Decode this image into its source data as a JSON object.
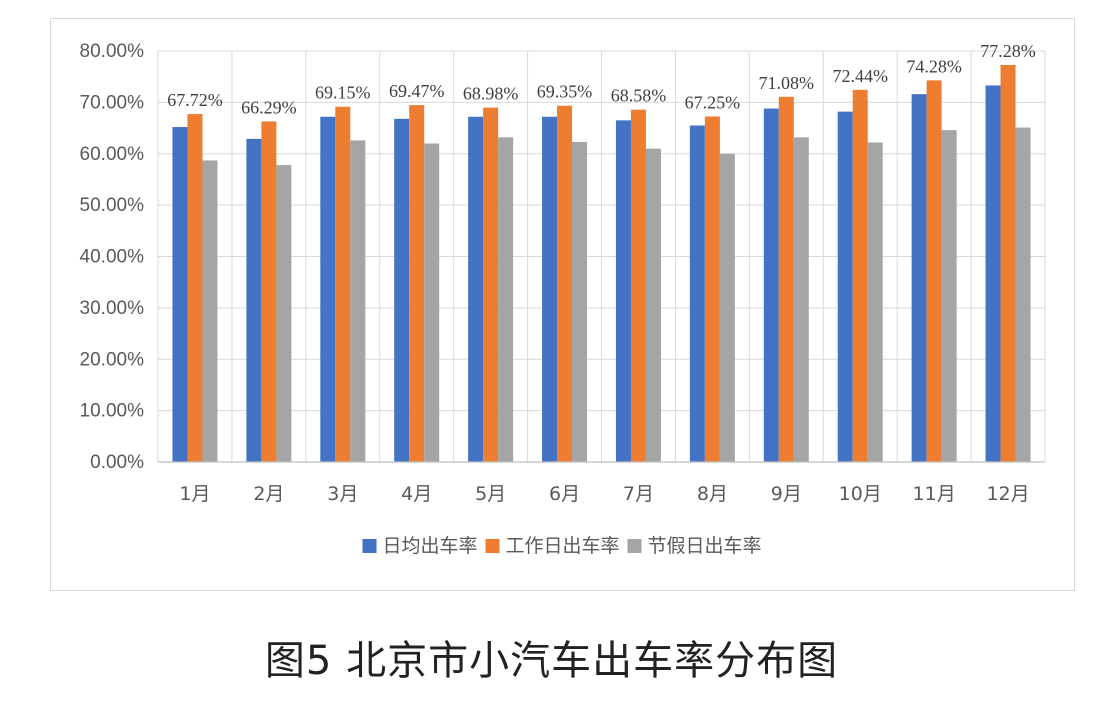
{
  "caption": "图5 北京市小汽车出车率分布图",
  "chart_data": {
    "type": "bar",
    "categories": [
      "1月",
      "2月",
      "3月",
      "4月",
      "5月",
      "6月",
      "7月",
      "8月",
      "9月",
      "10月",
      "11月",
      "12月"
    ],
    "series": [
      {
        "name": "日均出车率",
        "color": "#4472c4",
        "values": [
          65.2,
          62.9,
          67.2,
          66.8,
          67.2,
          67.2,
          66.5,
          65.5,
          68.8,
          68.2,
          71.6,
          73.3
        ]
      },
      {
        "name": "工作日出车率",
        "color": "#ed7d31",
        "values": [
          67.72,
          66.29,
          69.15,
          69.47,
          68.98,
          69.35,
          68.58,
          67.25,
          71.08,
          72.44,
          74.28,
          77.28
        ]
      },
      {
        "name": "节假日出车率",
        "color": "#a5a5a5",
        "values": [
          58.7,
          57.8,
          62.6,
          62.0,
          63.2,
          62.3,
          61.0,
          60.0,
          63.2,
          62.2,
          64.6,
          65.1
        ]
      }
    ],
    "data_labels": [
      "67.72%",
      "66.29%",
      "69.15%",
      "69.47%",
      "68.98%",
      "69.35%",
      "68.58%",
      "67.25%",
      "71.08%",
      "72.44%",
      "74.28%",
      "77.28%"
    ],
    "data_label_series": 1,
    "y_ticks": [
      "0.00%",
      "10.00%",
      "20.00%",
      "30.00%",
      "40.00%",
      "50.00%",
      "60.00%",
      "70.00%",
      "80.00%"
    ],
    "ylim": [
      0,
      80
    ],
    "grid": true,
    "legend_position": "bottom",
    "title": "",
    "xlabel": "",
    "ylabel": ""
  }
}
